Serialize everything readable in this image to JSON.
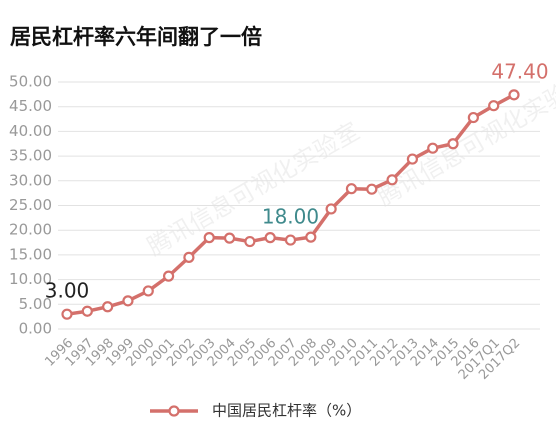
{
  "chart_data": {
    "type": "line",
    "title": "居民杠杆率六年间翻了一倍",
    "watermark": "腾讯信息可视化实验室",
    "categories": [
      "1996",
      "1997",
      "1998",
      "1999",
      "2000",
      "2001",
      "2002",
      "2003",
      "2004",
      "2005",
      "2006",
      "2007",
      "2008",
      "2009",
      "2010",
      "2011",
      "2012",
      "2013",
      "2014",
      "2015",
      "2016",
      "2017Q1",
      "2017Q2"
    ],
    "series": [
      {
        "name": "中国居民杠杆率（%）",
        "color": "#d4706b",
        "values": [
          3.0,
          3.6,
          4.5,
          5.7,
          7.7,
          10.7,
          14.5,
          18.5,
          18.4,
          17.7,
          18.5,
          18.0,
          18.6,
          24.3,
          28.4,
          28.3,
          30.2,
          34.4,
          36.6,
          37.5,
          42.8,
          45.2,
          47.4
        ],
        "value_labels": [
          "3.00",
          null,
          null,
          null,
          null,
          null,
          null,
          null,
          null,
          null,
          null,
          "18.00",
          null,
          null,
          null,
          null,
          null,
          null,
          null,
          null,
          null,
          null,
          "47.40"
        ],
        "value_label_colors": [
          "#222222",
          null,
          null,
          null,
          null,
          null,
          null,
          null,
          null,
          null,
          null,
          "#3f8a8c",
          null,
          null,
          null,
          null,
          null,
          null,
          null,
          null,
          null,
          null,
          "#d4706b"
        ]
      }
    ],
    "ylim": [
      0,
      50
    ],
    "yticks": [
      {
        "value": 0,
        "label": "0.00"
      },
      {
        "value": 5,
        "label": "5.00"
      },
      {
        "value": 10,
        "label": "10.00"
      },
      {
        "value": 15,
        "label": "15.00"
      },
      {
        "value": 20,
        "label": "20.00"
      },
      {
        "value": 25,
        "label": "25.00"
      },
      {
        "value": 30,
        "label": "30.00"
      },
      {
        "value": 35,
        "label": "35.00"
      },
      {
        "value": 40,
        "label": "40.00"
      },
      {
        "value": 45,
        "label": "45.00"
      },
      {
        "value": 50,
        "label": "50.00"
      }
    ],
    "grid": true,
    "legend": "bottom"
  }
}
